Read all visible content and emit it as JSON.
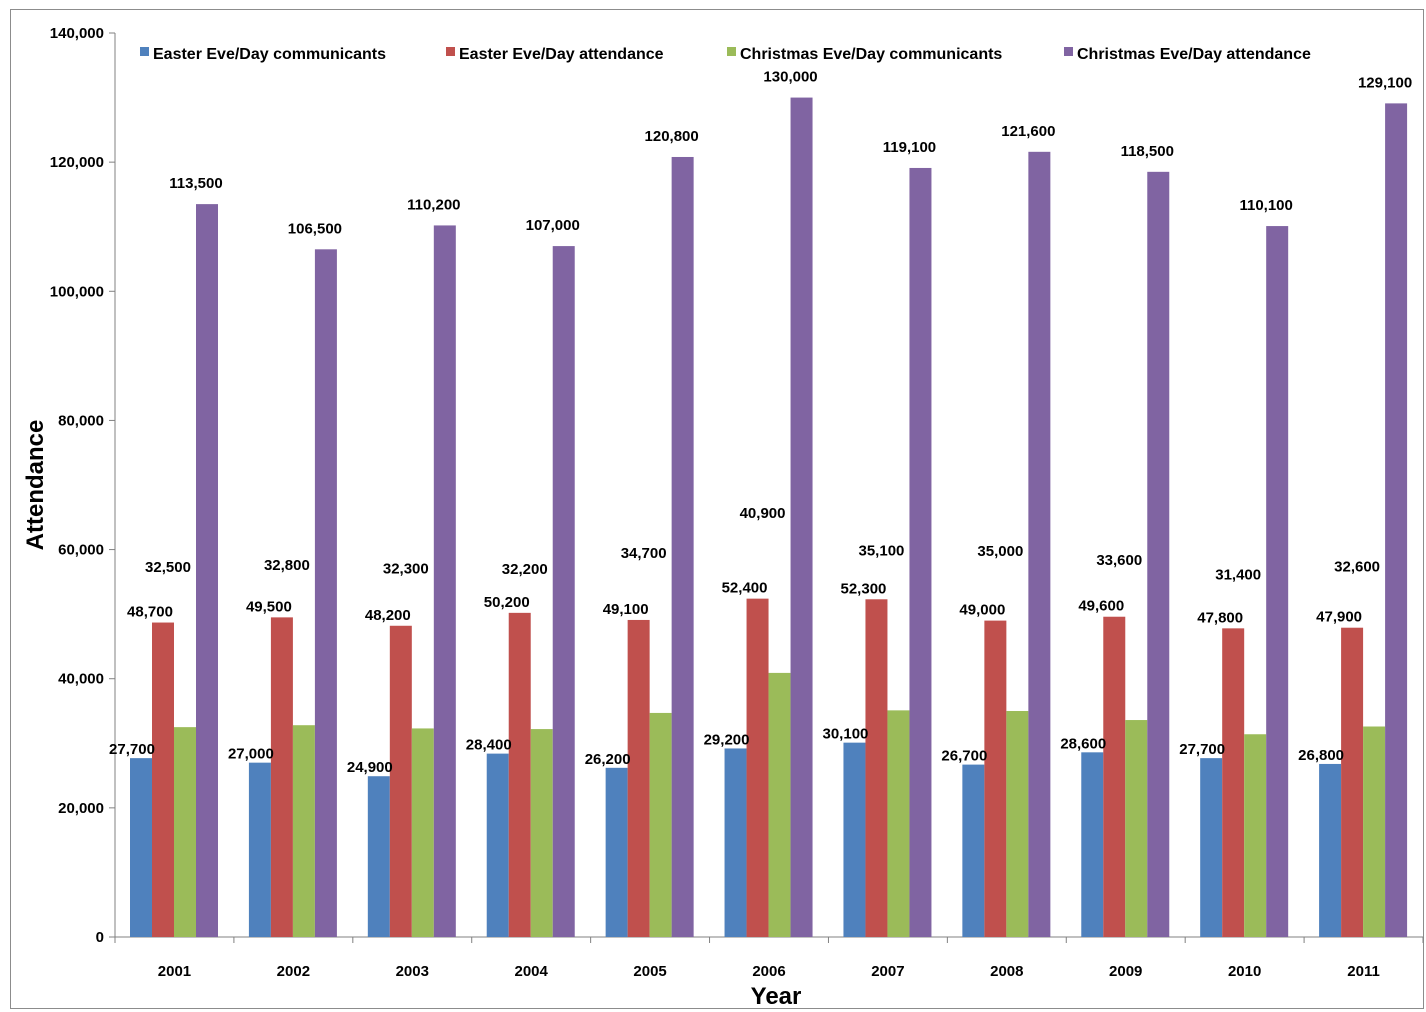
{
  "chart_data": {
    "type": "bar",
    "title": "",
    "xlabel": "Year",
    "ylabel": "Attendance",
    "ylim": [
      0,
      140000
    ],
    "yticks": [
      0,
      20000,
      40000,
      60000,
      80000,
      100000,
      120000,
      140000
    ],
    "ytick_labels": [
      "0",
      "20,000",
      "40,000",
      "60,000",
      "80,000",
      "100,000",
      "120,000",
      "140,000"
    ],
    "grid": false,
    "legend_position": "top",
    "categories": [
      "2001",
      "2002",
      "2003",
      "2004",
      "2005",
      "2006",
      "2007",
      "2008",
      "2009",
      "2010",
      "2011"
    ],
    "series": [
      {
        "name": "Easter Eve/Day communicants",
        "color": "#4f81bd",
        "values": [
          27700,
          27000,
          24900,
          28400,
          26200,
          29200,
          30100,
          26700,
          28600,
          27700,
          26800
        ],
        "labels": [
          "27,700",
          "27,000",
          "24,900",
          "28,400",
          "26,200",
          "29,200",
          "30,100",
          "26,700",
          "28,600",
          "27,700",
          "26,800"
        ]
      },
      {
        "name": "Easter Eve/Day attendance",
        "color": "#c0504d",
        "values": [
          48700,
          49500,
          48200,
          50200,
          49100,
          52400,
          52300,
          49000,
          49600,
          47800,
          47900
        ],
        "labels": [
          "48,700",
          "49,500",
          "48,200",
          "50,200",
          "49,100",
          "52,400",
          "52,300",
          "49,000",
          "49,600",
          "47,800",
          "47,900"
        ]
      },
      {
        "name": "Christmas Eve/Day communicants",
        "color": "#9bbb59",
        "values": [
          32500,
          32800,
          32300,
          32200,
          34700,
          40900,
          35100,
          35000,
          33600,
          31400,
          32600
        ],
        "labels": [
          "32,500",
          "32,800",
          "32,300",
          "32,200",
          "34,700",
          "40,900",
          "35,100",
          "35,000",
          "33,600",
          "31,400",
          "32,600"
        ]
      },
      {
        "name": "Christmas Eve/Day attendance",
        "color": "#8064a2",
        "values": [
          113500,
          106500,
          110200,
          107000,
          120800,
          130000,
          119100,
          121600,
          118500,
          110100,
          129100
        ],
        "labels": [
          "113,500",
          "106,500",
          "110,200",
          "107,000",
          "120,800",
          "130,000",
          "119,100",
          "121,600",
          "118,500",
          "110,100",
          "129,100"
        ]
      }
    ]
  }
}
